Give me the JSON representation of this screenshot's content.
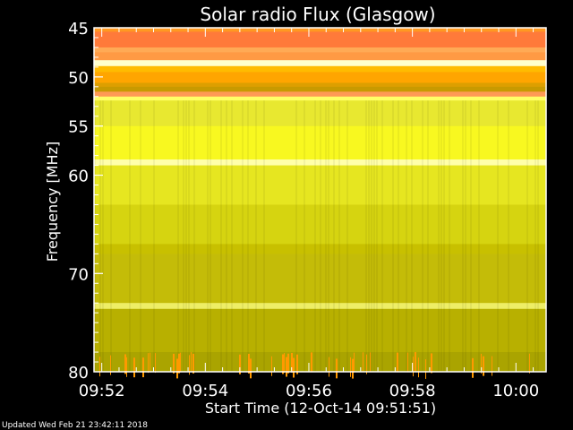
{
  "chart_data": {
    "type": "heatmap",
    "title": "Solar radio Flux (Glasgow)",
    "xlabel": "Start Time (12-Oct-14 09:51:51)",
    "ylabel": "Frequency [MHz]",
    "xlim_minutes": [
      "09:51:51",
      "10:00:35"
    ],
    "ylim": [
      45,
      80
    ],
    "y_inverted": true,
    "x_ticks": [
      "09:52",
      "09:54",
      "09:56",
      "09:58",
      "10:00"
    ],
    "y_ticks": [
      45,
      50,
      55,
      60,
      70,
      80
    ],
    "frequency_bands": [
      {
        "from": 45.0,
        "to": 45.4,
        "color": "#ff9922"
      },
      {
        "from": 45.4,
        "to": 47.0,
        "color": "#ff7a3a"
      },
      {
        "from": 47.0,
        "to": 47.5,
        "color": "#ffaa55"
      },
      {
        "from": 47.5,
        "to": 48.3,
        "color": "#ff9a44"
      },
      {
        "from": 48.3,
        "to": 48.9,
        "color": "#ffffcc"
      },
      {
        "from": 48.9,
        "to": 49.5,
        "color": "#ffbb00"
      },
      {
        "from": 49.5,
        "to": 50.6,
        "color": "#ffa500"
      },
      {
        "from": 50.6,
        "to": 51.0,
        "color": "#dd9f00"
      },
      {
        "from": 51.0,
        "to": 51.5,
        "color": "#c89a00"
      },
      {
        "from": 51.5,
        "to": 52.0,
        "color": "#ff9955"
      },
      {
        "from": 52.0,
        "to": 52.4,
        "color": "#ffff66"
      },
      {
        "from": 52.4,
        "to": 55.0,
        "color": "#e8e830"
      },
      {
        "from": 55.0,
        "to": 58.4,
        "color": "#f8f820"
      },
      {
        "from": 58.4,
        "to": 59.0,
        "color": "#ffffaa"
      },
      {
        "from": 59.0,
        "to": 63.0,
        "color": "#e6e620"
      },
      {
        "from": 63.0,
        "to": 67.0,
        "color": "#d6d410"
      },
      {
        "from": 67.0,
        "to": 68.0,
        "color": "#c8c000"
      },
      {
        "from": 68.0,
        "to": 73.0,
        "color": "#c4bc08"
      },
      {
        "from": 73.0,
        "to": 73.6,
        "color": "#eeee66"
      },
      {
        "from": 73.6,
        "to": 78.0,
        "color": "#b8b000"
      },
      {
        "from": 78.0,
        "to": 80.0,
        "color": "#aaa400"
      }
    ],
    "burst_color": "#ff9900"
  },
  "footer": {
    "updated": "Updated Wed Feb 21 23:42:11 2018"
  }
}
